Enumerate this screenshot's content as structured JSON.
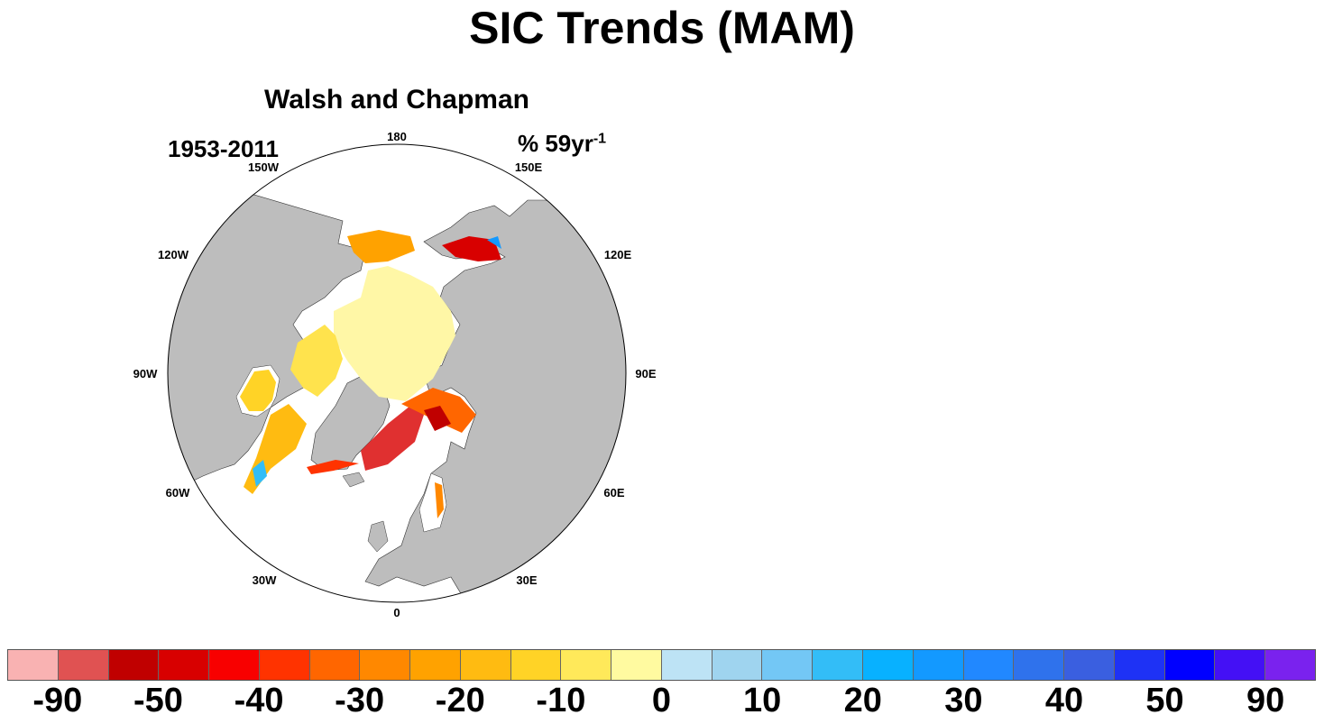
{
  "figure": {
    "title": "SIC Trends (MAM)",
    "panel_title": "Walsh and Chapman",
    "period": "1953-2011",
    "units_base": "% 59yr",
    "units_exp": "-1"
  },
  "map": {
    "projection": "north-polar-stereographic",
    "land_color": "#bdbdbd",
    "ocean_color": "#ffffff",
    "longitude_labels": [
      "180",
      "150E",
      "120E",
      "90E",
      "60E",
      "30E",
      "0",
      "30W",
      "60W",
      "90W",
      "120W",
      "150W"
    ]
  },
  "colorbar": {
    "colors": [
      "#f9b2b2",
      "#e05252",
      "#c00000",
      "#d80000",
      "#f80000",
      "#ff3300",
      "#ff6600",
      "#ff8800",
      "#ffa200",
      "#ffbb11",
      "#ffd326",
      "#ffe95a",
      "#fffaa0",
      "#bde3f5",
      "#9fd4ef",
      "#73c7f5",
      "#33bdf7",
      "#08b1ff",
      "#1399ff",
      "#2188ff",
      "#2f72ec",
      "#3a5fe0",
      "#1e32f5",
      "#0000ff",
      "#4410f5",
      "#7a22ee"
    ],
    "labels": [
      "-90",
      "-50",
      "-40",
      "-30",
      "-20",
      "-10",
      "0",
      "10",
      "20",
      "30",
      "40",
      "50",
      "90"
    ]
  }
}
